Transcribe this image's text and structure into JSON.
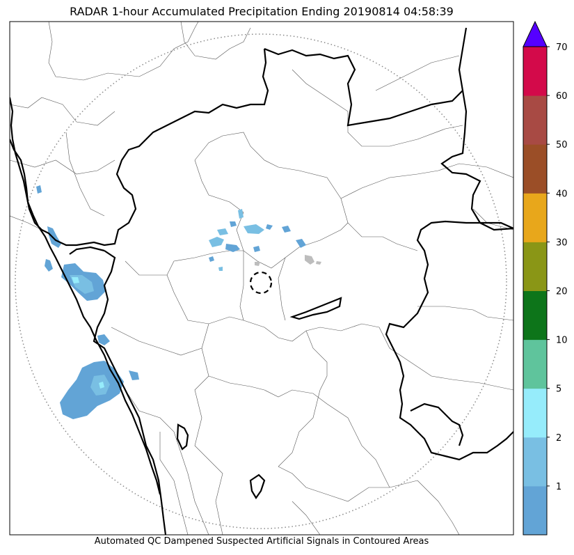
{
  "title": "RADAR 1-hour Accumulated Precipitation Ending 20190814 04:58:39",
  "footer_note": "Automated QC Dampened Suspected Artificial Signals in Contoured Areas",
  "colorbar": {
    "tick_labels": [
      "1",
      "2",
      "5",
      "10",
      "20",
      "30",
      "40",
      "50",
      "60",
      "70"
    ],
    "bins": [
      {
        "label": "0-1",
        "color": "#62a4d6"
      },
      {
        "label": "1-2",
        "color": "#79bfe3"
      },
      {
        "label": "2-5",
        "color": "#96ecfb"
      },
      {
        "label": "5-10",
        "color": "#5fc49c"
      },
      {
        "label": "10-20",
        "color": "#0d751a"
      },
      {
        "label": "20-30",
        "color": "#8a9616"
      },
      {
        "label": "30-40",
        "color": "#e8a71b"
      },
      {
        "label": "40-50",
        "color": "#9b4e27"
      },
      {
        "label": "50-60",
        "color": "#a84a44"
      },
      {
        "label": "60-70",
        "color": "#d30a4a"
      }
    ],
    "over_color": "#5500ff",
    "extend": "max"
  },
  "legend_colors": {
    "state_boundary": "#000000",
    "district_boundary": "#555555",
    "range_ring": "#888888",
    "qc_contour": "#000000",
    "suspected_artificial": "#bdbdbd"
  }
}
